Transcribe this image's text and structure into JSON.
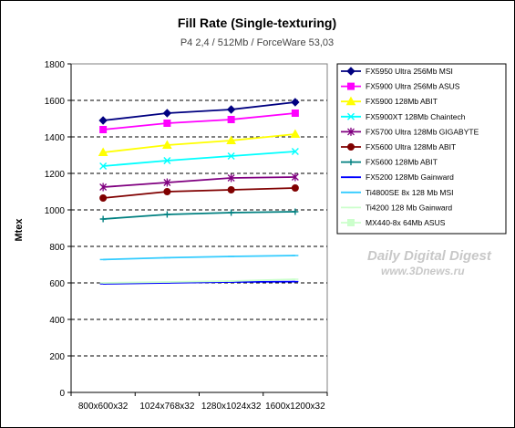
{
  "chart_data": {
    "type": "line",
    "title": "Fill Rate (Single-texturing)",
    "subtitle": "P4 2,4 / 512Mb / ForceWare 53,03",
    "ylabel": "Mtex",
    "xlabel": "",
    "categories": [
      "800x600x32",
      "1024x768x32",
      "1280x1024x32",
      "1600x1200x32"
    ],
    "ylim": [
      0,
      1800
    ],
    "yticks": [
      0,
      200,
      400,
      600,
      800,
      1000,
      1200,
      1400,
      1600,
      1800
    ],
    "grid": "horizontal dashed",
    "legend_position": "right",
    "series": [
      {
        "name": "FX5950 Ultra 256Mb MSI",
        "color": "#000080",
        "marker": "diamond",
        "values": [
          1490,
          1530,
          1550,
          1590
        ]
      },
      {
        "name": "FX5900 Ultra 256Mb ASUS",
        "color": "#ff00ff",
        "marker": "square",
        "values": [
          1440,
          1475,
          1495,
          1530
        ]
      },
      {
        "name": "FX5900 128Mb ABIT",
        "color": "#ffff00",
        "marker": "triangle",
        "values": [
          1315,
          1355,
          1380,
          1415
        ]
      },
      {
        "name": "FX5900XT 128Mb Chaintech",
        "color": "#00ffff",
        "marker": "x",
        "values": [
          1240,
          1270,
          1295,
          1320
        ]
      },
      {
        "name": "FX5700 Ultra 128Mb GIGABYTE",
        "color": "#800080",
        "marker": "star",
        "values": [
          1125,
          1150,
          1175,
          1180
        ]
      },
      {
        "name": "FX5600 Ultra 128Mb ABIT",
        "color": "#800000",
        "marker": "circle",
        "values": [
          1065,
          1100,
          1110,
          1120
        ]
      },
      {
        "name": "FX5600 128Mb ABIT",
        "color": "#008080",
        "marker": "plus",
        "values": [
          950,
          975,
          985,
          990
        ]
      },
      {
        "name": "FX5200 128Mb Gainward",
        "color": "#0000ff",
        "marker": "dash",
        "values": [
          595,
          600,
          605,
          607
        ]
      },
      {
        "name": "Ti4800SE 8x 128 Mb MSI",
        "color": "#33ccff",
        "marker": "dash",
        "values": [
          728,
          738,
          745,
          750
        ]
      },
      {
        "name": "Ti4200 128 Mb Gainward",
        "color": "#ccffcc",
        "marker": "dash",
        "values": [
          600,
          605,
          610,
          620
        ]
      },
      {
        "name": "MX440-8x 64Mb ASUS",
        "color": "#ccffcc",
        "marker": "square",
        "values": [
          null,
          null,
          null,
          null
        ]
      }
    ]
  },
  "watermark": {
    "line1": "Daily Digital Digest",
    "line2": "www.3Dnews.ru"
  }
}
